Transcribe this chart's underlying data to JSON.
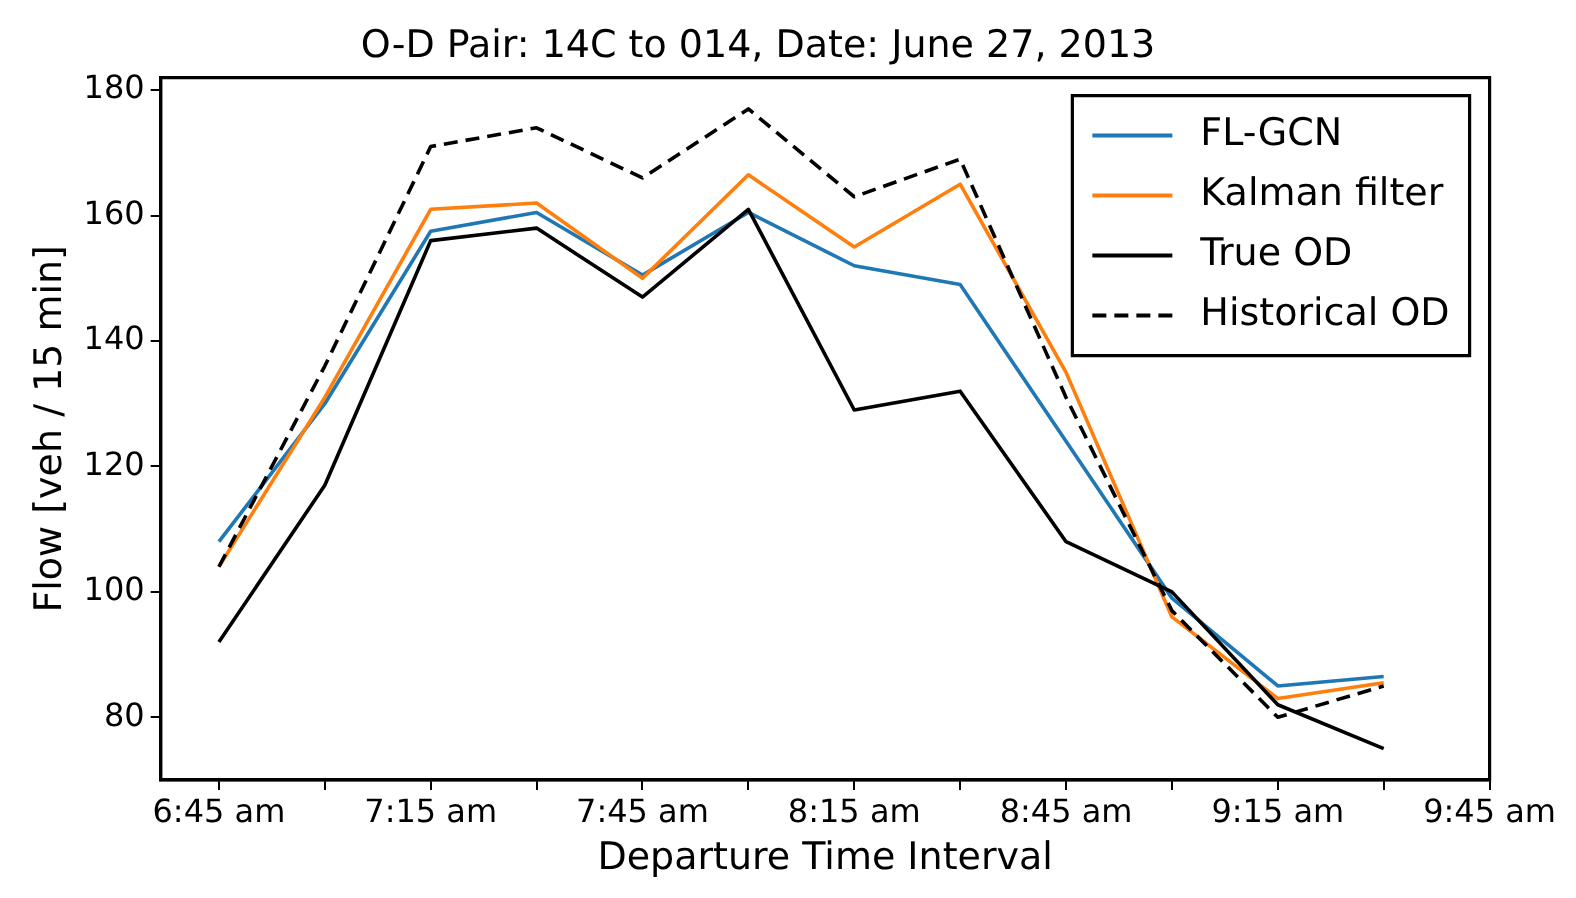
{
  "chart_data": {
    "type": "line",
    "title": "O-D Pair: 14C to 014, Date: June 27, 2013",
    "xlabel": "Departure Time Interval",
    "ylabel": "Flow [veh / 15 min]",
    "x": [
      6.75,
      7.0,
      7.25,
      7.5,
      7.75,
      8.0,
      8.25,
      8.5,
      8.75,
      9.0,
      9.25,
      9.5
    ],
    "xlim": [
      6.6125,
      9.75
    ],
    "xticks": [
      {
        "value": 6.75,
        "label": "6:45 am"
      },
      {
        "value": 7.0,
        "label": null
      },
      {
        "value": 7.25,
        "label": "7:15 am"
      },
      {
        "value": 7.5,
        "label": null
      },
      {
        "value": 7.75,
        "label": "7:45 am"
      },
      {
        "value": 8.0,
        "label": null
      },
      {
        "value": 8.25,
        "label": "8:15 am"
      },
      {
        "value": 8.5,
        "label": null
      },
      {
        "value": 8.75,
        "label": "8:45 am"
      },
      {
        "value": 9.0,
        "label": null
      },
      {
        "value": 9.25,
        "label": "9:15 am"
      },
      {
        "value": 9.5,
        "label": null
      },
      {
        "value": 9.75,
        "label": "9:45 am"
      }
    ],
    "ylim": [
      70,
      182
    ],
    "yticks": [
      80,
      100,
      120,
      140,
      160,
      180
    ],
    "grid": false,
    "legend": "top right",
    "marker": "none",
    "series": [
      {
        "name": "FL-GCN",
        "color": "#1f77b4",
        "values": [
          108,
          130,
          157.5,
          160.5,
          150.5,
          160.5,
          152,
          149,
          124,
          99,
          85,
          86.5
        ]
      },
      {
        "name": "Kalman filter",
        "color": "#ff7f0e",
        "values": [
          104,
          131,
          161,
          162,
          150,
          166.5,
          155,
          165,
          135,
          96,
          83,
          85.5
        ]
      },
      {
        "name": "True OD",
        "color": "#000000",
        "values": [
          92,
          117,
          156,
          158,
          147,
          161,
          129,
          132,
          108,
          100,
          82,
          75
        ]
      },
      {
        "name": "Historical OD",
        "color": "#000000",
        "line_style": "dashed",
        "values": [
          104,
          136,
          171,
          174,
          166,
          177,
          163,
          169,
          131,
          97,
          80,
          85
        ]
      }
    ]
  }
}
